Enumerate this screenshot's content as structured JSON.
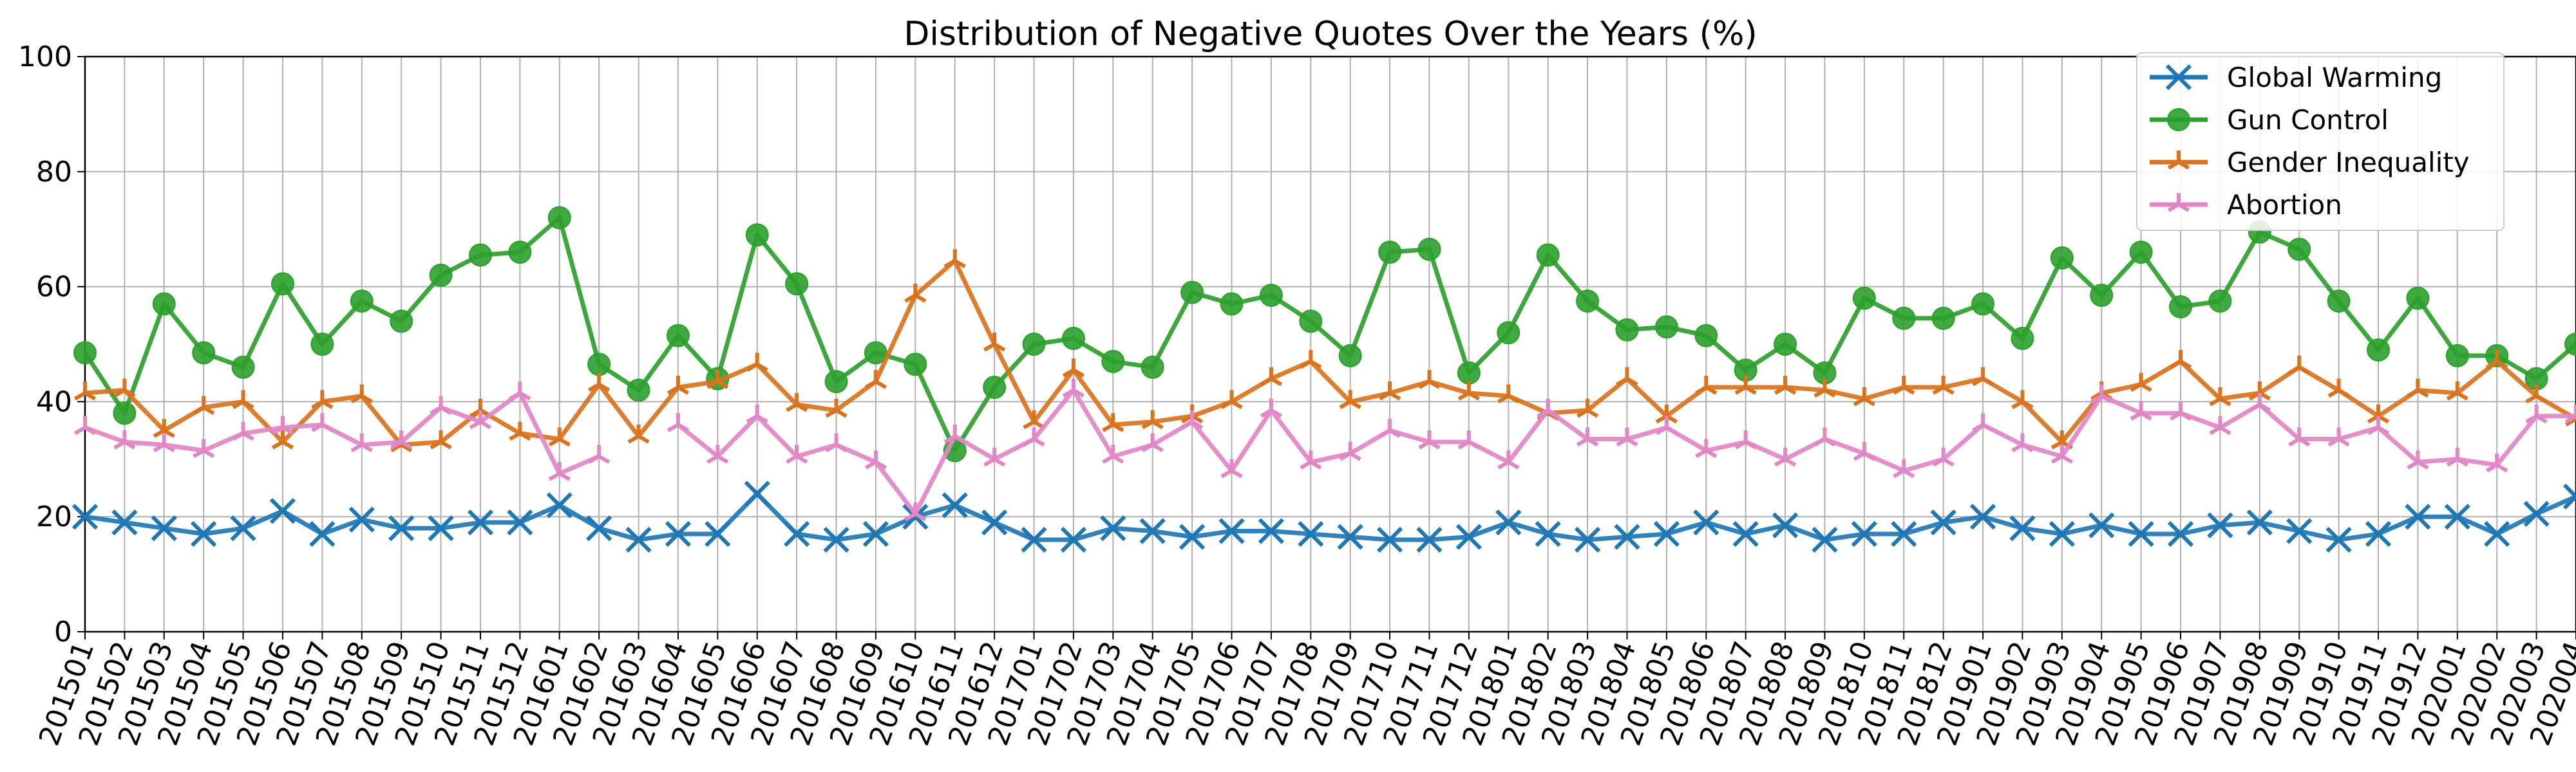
{
  "chart_data": {
    "type": "line",
    "title": "Distribution of Negative Quotes Over the Years (%)",
    "xlabel": "",
    "ylabel": "",
    "ylim": [
      0,
      100
    ],
    "yticks": [
      0,
      20,
      40,
      60,
      80,
      100
    ],
    "grid": true,
    "legend_position": "top-right",
    "x": [
      "201501",
      "201502",
      "201503",
      "201504",
      "201505",
      "201506",
      "201507",
      "201508",
      "201509",
      "201510",
      "201511",
      "201512",
      "201601",
      "201602",
      "201603",
      "201604",
      "201605",
      "201606",
      "201607",
      "201608",
      "201609",
      "201610",
      "201611",
      "201612",
      "201701",
      "201702",
      "201703",
      "201704",
      "201705",
      "201706",
      "201707",
      "201708",
      "201709",
      "201710",
      "201711",
      "201712",
      "201801",
      "201802",
      "201803",
      "201804",
      "201805",
      "201806",
      "201807",
      "201808",
      "201809",
      "201810",
      "201811",
      "201812",
      "201901",
      "201902",
      "201903",
      "201904",
      "201905",
      "201906",
      "201907",
      "201908",
      "201909",
      "201910",
      "201911",
      "201912",
      "202001",
      "202002",
      "202003",
      "202004"
    ],
    "series": [
      {
        "name": "Global Warming",
        "color": "#1f77b4",
        "marker": "x",
        "values": [
          20,
          19,
          18,
          17,
          18,
          21,
          17,
          19.5,
          18,
          18,
          19,
          19,
          22,
          18,
          16,
          17,
          17,
          24,
          17,
          16,
          17,
          20,
          22,
          19,
          16,
          16,
          18,
          17.5,
          16.5,
          17.5,
          17.5,
          17,
          16.5,
          16,
          16,
          16.5,
          19,
          17,
          16,
          16.5,
          17,
          19,
          17,
          18.5,
          16,
          17,
          17,
          19,
          20,
          18,
          17,
          18.5,
          17,
          17,
          18.5,
          19,
          17.5,
          16,
          17,
          20,
          20,
          17,
          20.5,
          23.5
        ]
      },
      {
        "name": "Gun Control",
        "color": "#2ca02c",
        "marker": "o",
        "values": [
          48.5,
          38,
          57,
          48.5,
          46,
          60.5,
          50,
          57.5,
          54,
          62,
          65.5,
          66,
          72,
          46.5,
          42,
          51.5,
          44,
          69,
          60.5,
          43.5,
          48.5,
          46.5,
          31.5,
          42.5,
          50,
          51,
          47,
          46,
          59,
          57,
          58.5,
          54,
          48,
          66,
          66.5,
          45,
          52,
          65.5,
          57.5,
          52.5,
          53,
          51.5,
          45.5,
          50,
          45,
          58,
          54.5,
          54.5,
          57,
          51,
          65,
          58.5,
          66,
          56.5,
          57.5,
          69.5,
          66.5,
          57.5,
          49,
          58,
          48,
          48,
          44,
          50
        ]
      },
      {
        "name": "Gender Inequality",
        "color": "#d9731e",
        "marker": "tri",
        "values": [
          41.5,
          42,
          35,
          39,
          40,
          33,
          40,
          41,
          32.5,
          33,
          38.5,
          34.5,
          33.5,
          43,
          34,
          42.5,
          43.5,
          46.5,
          39.5,
          38.5,
          43.5,
          58.5,
          64.5,
          50,
          36.5,
          45.5,
          36,
          36.5,
          37.5,
          40,
          44,
          47,
          40,
          41.5,
          43.5,
          41.5,
          41,
          38,
          38.5,
          44,
          37.5,
          42.5,
          42.5,
          42.5,
          42,
          40.5,
          42.5,
          42.5,
          44,
          40,
          33,
          41.5,
          43,
          47,
          40.5,
          41.5,
          46,
          42,
          37.5,
          42,
          41.5,
          47,
          41,
          37
        ]
      },
      {
        "name": "Abortion",
        "color": "#e187c6",
        "marker": "tri",
        "values": [
          35.5,
          33,
          32.5,
          31.5,
          34.5,
          35.5,
          36,
          32.5,
          33,
          39,
          36.5,
          41.5,
          27.5,
          30.5,
          null,
          36,
          30.5,
          37.5,
          30.5,
          32.5,
          29.5,
          20.5,
          34,
          30,
          33.5,
          42,
          30.5,
          32.5,
          36.5,
          28,
          38.5,
          29.5,
          31,
          35,
          33,
          33,
          29.5,
          38.5,
          33.5,
          33.5,
          35.5,
          31.5,
          33,
          30,
          33.5,
          31,
          28,
          30,
          36,
          32.5,
          30.5,
          41,
          38,
          38,
          35.5,
          39.5,
          33.5,
          33.5,
          35.5,
          29.5,
          30,
          29,
          37.5,
          37.5
        ]
      }
    ]
  }
}
